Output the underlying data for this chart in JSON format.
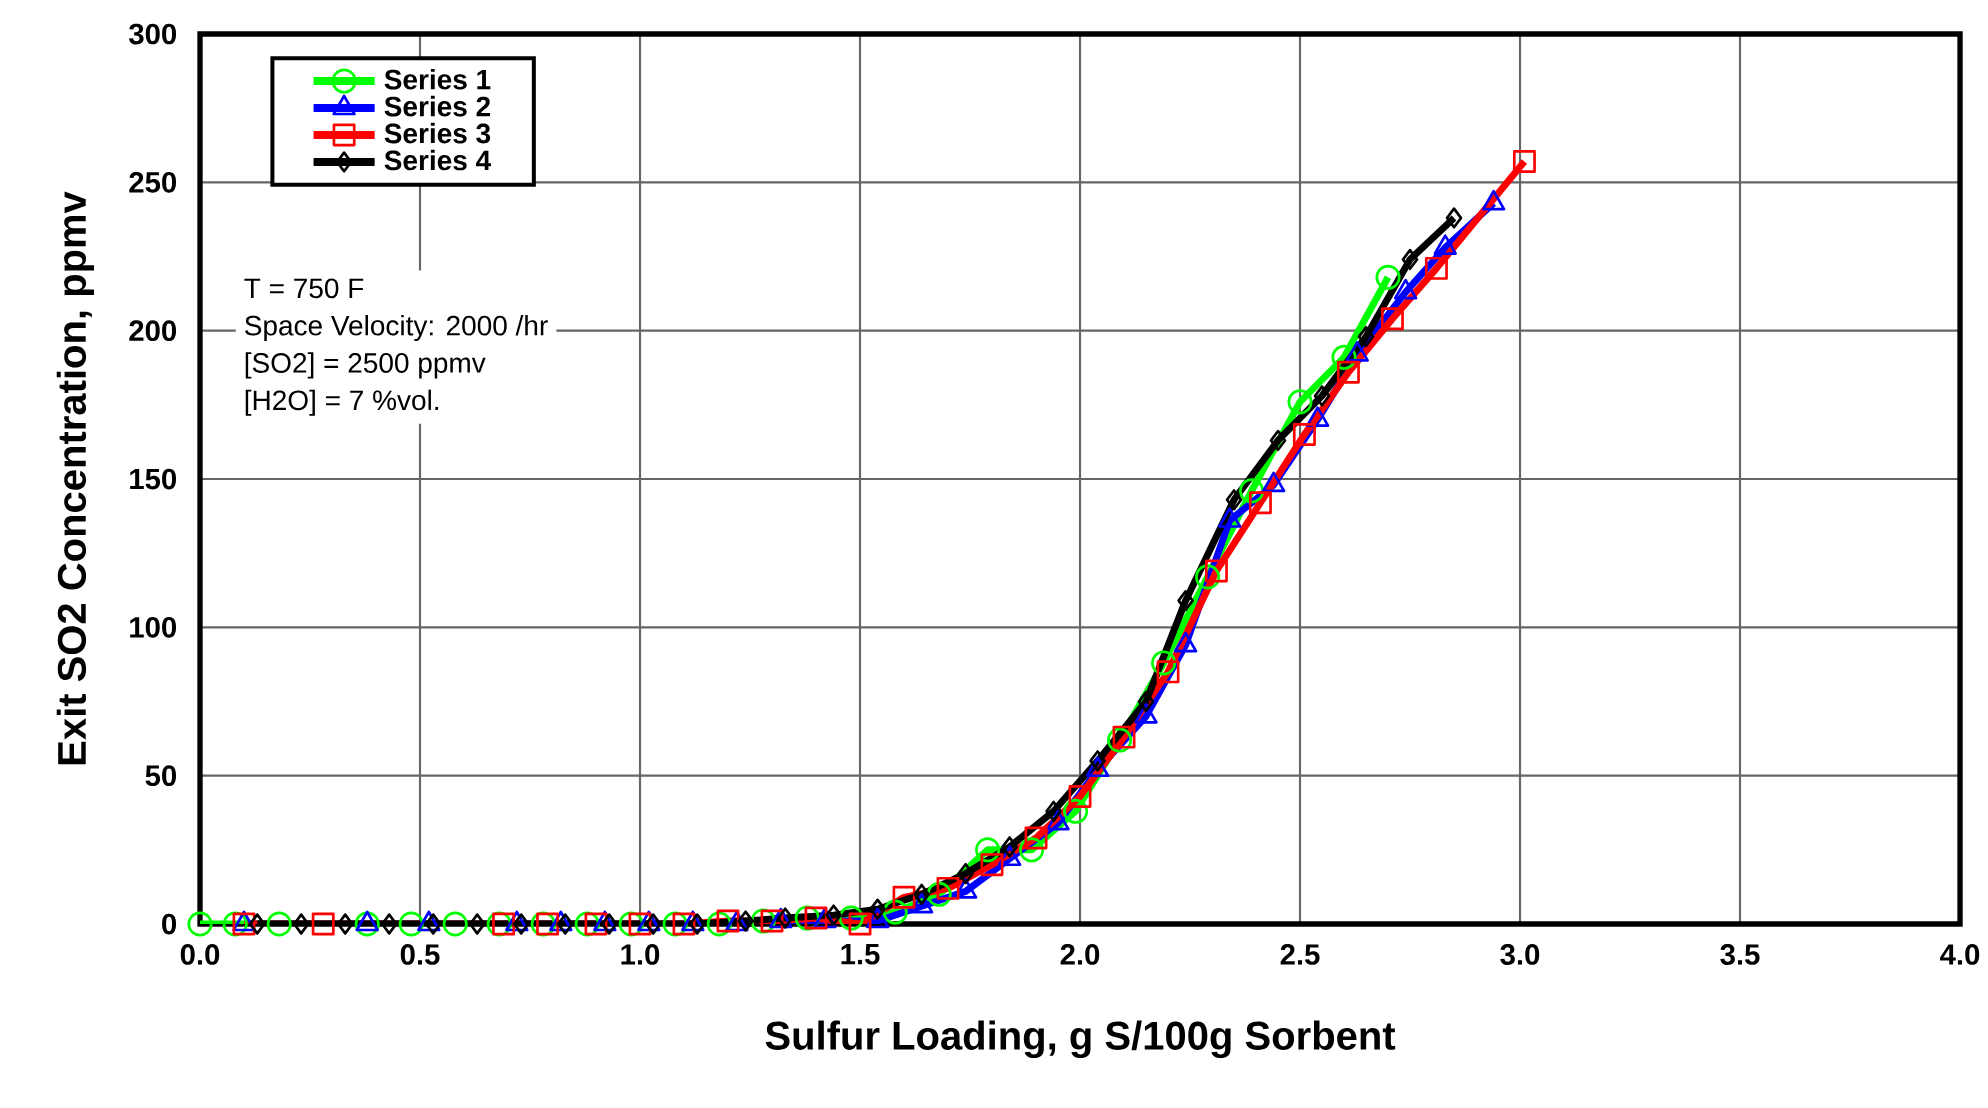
{
  "chart_data": {
    "type": "line",
    "xlabel": "Sulfur Loading, g S/100g Sorbent",
    "ylabel": "Exit SO2 Concentration, ppmv",
    "xlim": [
      0,
      4
    ],
    "ylim": [
      0,
      300
    ],
    "xticks": [
      {
        "value": 0,
        "label": "0.0"
      },
      {
        "value": 0.5,
        "label": "0.5"
      },
      {
        "value": 1,
        "label": "1.0"
      },
      {
        "value": 1.5,
        "label": "1.5"
      },
      {
        "value": 2,
        "label": "2.0"
      },
      {
        "value": 2.5,
        "label": "2.5"
      },
      {
        "value": 3,
        "label": "3.0"
      },
      {
        "value": 3.5,
        "label": "3.5"
      },
      {
        "value": 4,
        "label": "4.0"
      }
    ],
    "yticks": [
      0,
      50,
      100,
      150,
      200,
      250,
      300
    ],
    "grid": true,
    "legend": "top left",
    "annotations": [
      "T = 750 F",
      "Space Velocity: 2000 /hr",
      "[SO2] = 2500 ppmv",
      "[H2O] = 7 %vol."
    ],
    "series": [
      {
        "name": "Series 1",
        "color": "#00ff00",
        "marker": "circle",
        "x": [
          0.0,
          0.08,
          0.18,
          0.38,
          0.48,
          0.58,
          0.68,
          0.78,
          0.88,
          0.98,
          1.08,
          1.18,
          1.28,
          1.38,
          1.48,
          1.58,
          1.68,
          1.79,
          1.89,
          1.99,
          2.09,
          2.19,
          2.29,
          2.39,
          2.5,
          2.6,
          2.7
        ],
        "values": [
          0,
          0,
          0,
          0,
          0,
          0,
          0,
          0,
          0,
          0,
          0,
          0,
          1,
          2,
          2,
          4,
          10,
          25,
          25,
          38,
          62,
          88,
          117,
          146,
          176,
          191,
          218
        ]
      },
      {
        "name": "Series 2",
        "color": "#0000ff",
        "marker": "triangle",
        "x": [
          0.1,
          0.38,
          0.52,
          0.72,
          0.82,
          0.92,
          1.02,
          1.12,
          1.22,
          1.32,
          1.42,
          1.54,
          1.64,
          1.74,
          1.84,
          1.95,
          2.04,
          2.15,
          2.24,
          2.34,
          2.44,
          2.54,
          2.63,
          2.74,
          2.83,
          2.94
        ],
        "values": [
          0,
          0,
          0,
          0,
          0,
          0,
          0,
          0,
          0,
          1,
          1,
          1,
          6,
          11,
          22,
          34,
          52,
          70,
          94,
          136,
          148,
          170,
          192,
          213,
          228,
          243
        ]
      },
      {
        "name": "Series 3",
        "color": "#ff0000",
        "marker": "square",
        "x": [
          0.1,
          0.28,
          0.69,
          0.79,
          0.9,
          1.0,
          1.1,
          1.2,
          1.3,
          1.4,
          1.5,
          1.6,
          1.7,
          1.8,
          1.9,
          2.0,
          2.1,
          2.2,
          2.31,
          2.41,
          2.51,
          2.61,
          2.71,
          2.81,
          3.01
        ],
        "values": [
          0,
          0,
          0,
          0,
          0,
          0,
          0,
          1,
          1,
          2,
          0,
          9,
          12,
          20,
          29,
          43,
          63,
          85,
          119,
          142,
          165,
          186,
          204,
          221,
          257
        ]
      },
      {
        "name": "Series 4",
        "color": "#000000",
        "marker": "diamond",
        "x": [
          0.13,
          0.23,
          0.33,
          0.43,
          0.53,
          0.63,
          0.73,
          0.83,
          0.93,
          1.03,
          1.13,
          1.24,
          1.33,
          1.44,
          1.54,
          1.64,
          1.74,
          1.84,
          1.94,
          2.04,
          2.15,
          2.24,
          2.35,
          2.45,
          2.55,
          2.65,
          2.75,
          2.85
        ],
        "values": [
          0,
          0,
          0,
          0,
          0,
          0,
          0,
          0,
          0,
          0,
          0,
          1,
          2,
          3,
          5,
          10,
          17,
          26,
          38,
          55,
          75,
          109,
          143,
          163,
          178,
          198,
          224,
          238
        ]
      }
    ]
  }
}
